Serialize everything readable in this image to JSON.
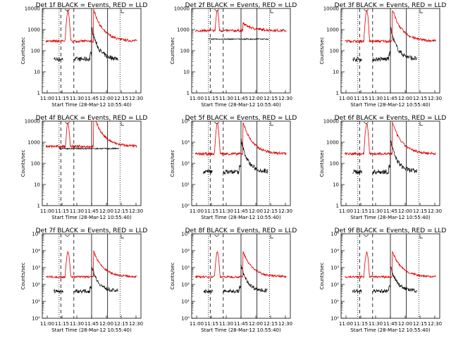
{
  "colors": {
    "events": "#000000",
    "lld": "#e00000",
    "background": "#ffffff"
  },
  "chart_data": [
    {
      "type": "line",
      "title": "Det 1f BLACK = Events, RED = LLD",
      "xlabel": "Start Time (28-Mar-12 10:55:40)",
      "ylabel": "Counts/sec",
      "yscale": "log",
      "ylim": [
        1,
        10000
      ],
      "yticks": [
        "1",
        "10",
        "100",
        "1000",
        "10000"
      ],
      "xticks": [
        "11:00",
        "11:15",
        "11:30",
        "11:45",
        "12:00",
        "12:15",
        "12:30"
      ]
    },
    {
      "type": "line",
      "title": "Det 2f BLACK = Events, RED = LLD",
      "xlabel": "Start Time (28-Mar-12 10:55:40)",
      "ylabel": "Counts/sec",
      "yscale": "log",
      "ylim": [
        1,
        10000
      ],
      "yticks": [
        "1",
        "10",
        "100",
        "1000",
        "10000"
      ],
      "xticks": [
        "11:00",
        "11:15",
        "11:30",
        "11:45",
        "12:00",
        "12:15",
        "12:30"
      ]
    },
    {
      "type": "line",
      "title": "Det 3f BLACK = Events, RED = LLD",
      "xlabel": "Start Time (28-Mar-12 10:55:40)",
      "ylabel": "Counts/sec",
      "yscale": "log",
      "ylim": [
        1,
        10000
      ],
      "yticks": [
        "1",
        "10",
        "100",
        "1000",
        "10000"
      ],
      "xticks": [
        "11:00",
        "11:15",
        "11:30",
        "11:45",
        "12:00",
        "12:15",
        "12:30"
      ]
    },
    {
      "type": "line",
      "title": "Det 4f BLACK = Events, RED = LLD",
      "xlabel": "Start Time (28-Mar-12 10:55:40)",
      "ylabel": "Counts/sec",
      "yscale": "log",
      "ylim": [
        1,
        10000
      ],
      "yticks": [
        "1",
        "10",
        "100",
        "1000",
        "10000"
      ],
      "xticks": [
        "11:00",
        "11:15",
        "11:30",
        "11:45",
        "12:00",
        "12:15",
        "12:30"
      ]
    },
    {
      "type": "line",
      "title": "Det 5f BLACK = Events, RED = LLD",
      "xlabel": "Start Time (28-Mar-12 10:55:40)",
      "ylabel": "Counts/sec",
      "yscale": "log",
      "ylim": [
        1,
        10000
      ],
      "yticks": [
        "10⁰",
        "10¹",
        "10²",
        "10³",
        "10⁴"
      ],
      "xticks": [
        "11:00",
        "11:15",
        "11:30",
        "11:45",
        "12:00",
        "12:15",
        "12:30"
      ]
    },
    {
      "type": "line",
      "title": "Det 6f BLACK = Events, RED = LLD",
      "xlabel": "Start Time (28-Mar-12 10:55:40)",
      "ylabel": "Counts/sec",
      "yscale": "log",
      "ylim": [
        1,
        10000
      ],
      "yticks": [
        "1",
        "10",
        "100",
        "1000",
        "10000"
      ],
      "xticks": [
        "11:00",
        "11:15",
        "11:30",
        "11:45",
        "12:00",
        "12:15",
        "12:30"
      ]
    },
    {
      "type": "line",
      "title": "Det 7f BLACK = Events, RED = LLD",
      "xlabel": "Start Time (28-Mar-12 10:55:40)",
      "ylabel": "Counts/sec",
      "yscale": "log",
      "ylim": [
        1,
        100000
      ],
      "yticks": [
        "10⁰",
        "10¹",
        "10²",
        "10³",
        "10⁴",
        "10⁵"
      ],
      "xticks": [
        "11:00",
        "11:15",
        "11:30",
        "11:45",
        "12:00",
        "12:15",
        "12:30"
      ]
    },
    {
      "type": "line",
      "title": "Det 8f BLACK = Events, RED = LLD",
      "xlabel": "Start Time (28-Mar-12 10:55:40)",
      "ylabel": "Counts/sec",
      "yscale": "log",
      "ylim": [
        1,
        100000
      ],
      "yticks": [
        "10⁰",
        "10¹",
        "10²",
        "10³",
        "10⁴",
        "10⁵"
      ],
      "xticks": [
        "11:00",
        "11:15",
        "11:30",
        "11:45",
        "12:00",
        "12:15",
        "12:30"
      ]
    },
    {
      "type": "line",
      "title": "Det 9f BLACK = Events, RED = LLD",
      "xlabel": "Start Time (28-Mar-12 10:55:40)",
      "ylabel": "Counts/sec",
      "yscale": "log",
      "ylim": [
        1,
        100000
      ],
      "yticks": [
        "10⁰",
        "10¹",
        "10²",
        "10³",
        "10⁴",
        "10⁵"
      ],
      "xticks": [
        "11:00",
        "11:15",
        "11:30",
        "11:45",
        "12:00",
        "12:15",
        "12:30"
      ]
    }
  ]
}
